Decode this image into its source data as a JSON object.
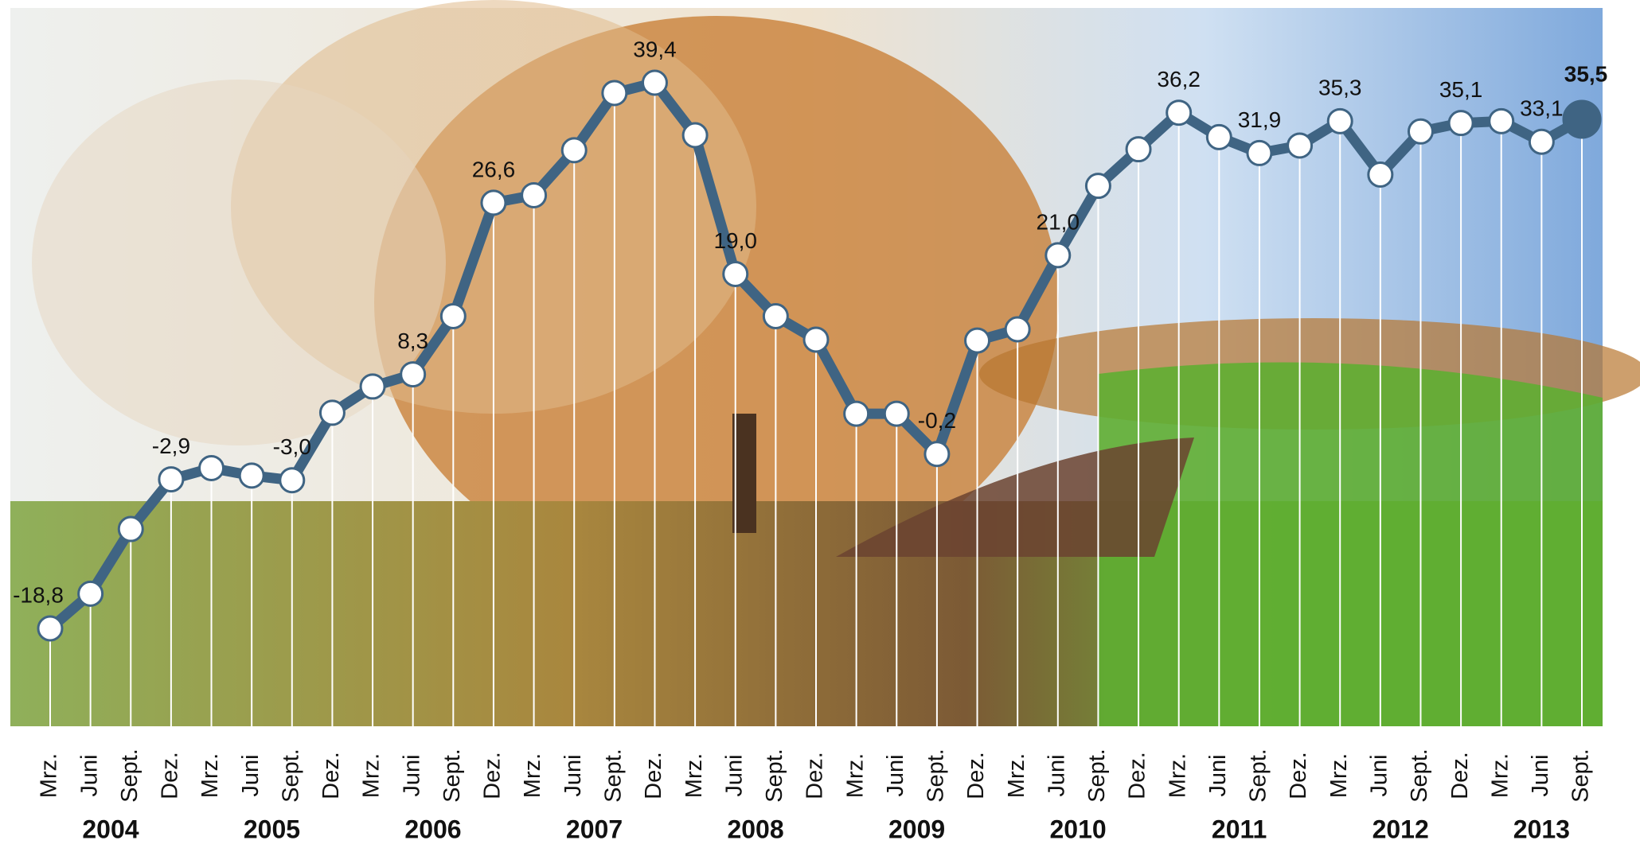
{
  "chart_data": {
    "type": "line",
    "categories": [
      "Mrz.",
      "Juni",
      "Sept.",
      "Dez.",
      "Mrz.",
      "Juni",
      "Sept.",
      "Dez.",
      "Mrz.",
      "Juni",
      "Sept.",
      "Dez.",
      "Mrz.",
      "Juni",
      "Sept.",
      "Dez.",
      "Mrz.",
      "Juni",
      "Sept.",
      "Dez.",
      "Mrz.",
      "Juni",
      "Sept.",
      "Dez.",
      "Mrz.",
      "Juni",
      "Sept.",
      "Dez.",
      "Mrz.",
      "Juni",
      "Sept.",
      "Dez.",
      "Mrz.",
      "Juni",
      "Sept.",
      "Dez.",
      "Mrz.",
      "Juni",
      "Sept."
    ],
    "years": [
      "2004",
      "2005",
      "2006",
      "2007",
      "2008",
      "2009",
      "2010",
      "2011",
      "2012",
      "2013"
    ],
    "series": [
      {
        "color": "#3f6483",
        "values": [
          -18.8,
          -15.1,
          -8.2,
          -2.9,
          -1.7,
          -2.5,
          -3.0,
          4.2,
          7.0,
          8.3,
          14.5,
          26.6,
          27.4,
          32.2,
          38.3,
          39.4,
          33.8,
          19.0,
          14.5,
          12.0,
          4.1,
          4.1,
          -0.2,
          11.9,
          13.1,
          21.0,
          28.4,
          32.3,
          36.2,
          33.6,
          31.9,
          32.7,
          35.3,
          29.6,
          34.2,
          35.1,
          35.3,
          33.1,
          35.5
        ],
        "value_labels": [
          "-18,8",
          null,
          null,
          "-2,9",
          null,
          null,
          "-3,0",
          null,
          null,
          "8,3",
          null,
          "26,6",
          null,
          null,
          null,
          "39,4",
          null,
          "19,0",
          null,
          null,
          null,
          null,
          "-0,2",
          null,
          null,
          "21,0",
          null,
          null,
          "36,2",
          null,
          "31,9",
          null,
          "35,3",
          null,
          null,
          "35,1",
          null,
          "33,1",
          "35,5"
        ]
      }
    ]
  }
}
